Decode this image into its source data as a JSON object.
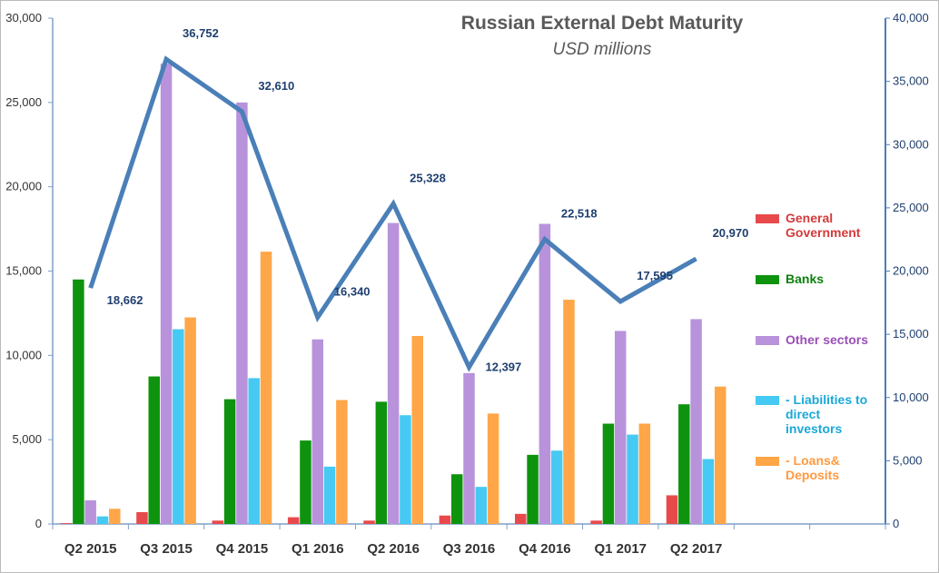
{
  "chart_data": {
    "type": "bar",
    "title": "Russian External Debt Maturity",
    "subtitle": "USD millions",
    "categories": [
      "Q2 2015",
      "Q3 2015",
      "Q4 2015",
      "Q1 2016",
      "Q2 2016",
      "Q3 2016",
      "Q4 2016",
      "Q1 2017",
      "Q2 2017",
      null,
      null
    ],
    "series": [
      {
        "name": "General Government",
        "color": "#e84a4c",
        "text_color": "#d43a3a",
        "values": [
          50,
          700,
          200,
          400,
          200,
          500,
          600,
          200,
          1700,
          null,
          null
        ]
      },
      {
        "name": "Banks",
        "color": "#0e930e",
        "text_color": "#0e800e",
        "values": [
          14500,
          8750,
          7400,
          4950,
          7250,
          2950,
          4100,
          5950,
          7100,
          null,
          null
        ]
      },
      {
        "name": "Other sectors",
        "color": "#b893dc",
        "text_color": "#9a4fb8",
        "values": [
          1400,
          27300,
          25000,
          10950,
          17850,
          8950,
          17800,
          11450,
          12150,
          null,
          null
        ]
      },
      {
        "name": "- Liabilities to direct investors",
        "color": "#46c9f2",
        "text_color": "#1aa8d8",
        "values": [
          450,
          11550,
          8650,
          3400,
          6450,
          2200,
          4350,
          5300,
          3850,
          null,
          null
        ]
      },
      {
        "name": "- Loans& Deposits",
        "color": "#ffa648",
        "text_color": "#ff9a40",
        "values": [
          900,
          12250,
          16150,
          7350,
          11150,
          6550,
          13300,
          5950,
          8150,
          null,
          null
        ]
      },
      {
        "type": "line",
        "axis": "y2",
        "color": "#4a7fb8",
        "values": [
          18662,
          36752,
          32610,
          16340,
          25328,
          12397,
          22518,
          17595,
          20970,
          null,
          null
        ],
        "value_labels": [
          "18,662",
          "36,752",
          "32,610",
          "16,340",
          "25,328",
          "12,397",
          "22,518",
          "17,595",
          "20,970",
          null,
          null
        ]
      }
    ],
    "ylim": [
      0,
      30000
    ],
    "yticks": [
      0,
      {
        "value": 5000,
        "label": "5,000"
      },
      {
        "value": 10000,
        "label": "10,000"
      },
      {
        "value": 15000,
        "label": "15,000"
      },
      {
        "value": 20000,
        "label": "20,000"
      },
      {
        "value": 25000,
        "label": "25,000"
      },
      {
        "value": 30000,
        "label": "30,000"
      }
    ],
    "y2lim": [
      0,
      40000
    ],
    "y2ticks": [
      0,
      {
        "value": 5000,
        "label": "5,000"
      },
      {
        "value": 10000,
        "label": "10,000"
      },
      {
        "value": 15000,
        "label": "15,000"
      },
      {
        "value": 20000,
        "label": "20,000"
      },
      {
        "value": 25000,
        "label": "25,000"
      },
      {
        "value": 30000,
        "label": "30,000"
      },
      {
        "value": 35000,
        "label": "35,000"
      },
      {
        "value": 40000,
        "label": "40,000"
      }
    ],
    "legend": "right",
    "grid": false
  }
}
